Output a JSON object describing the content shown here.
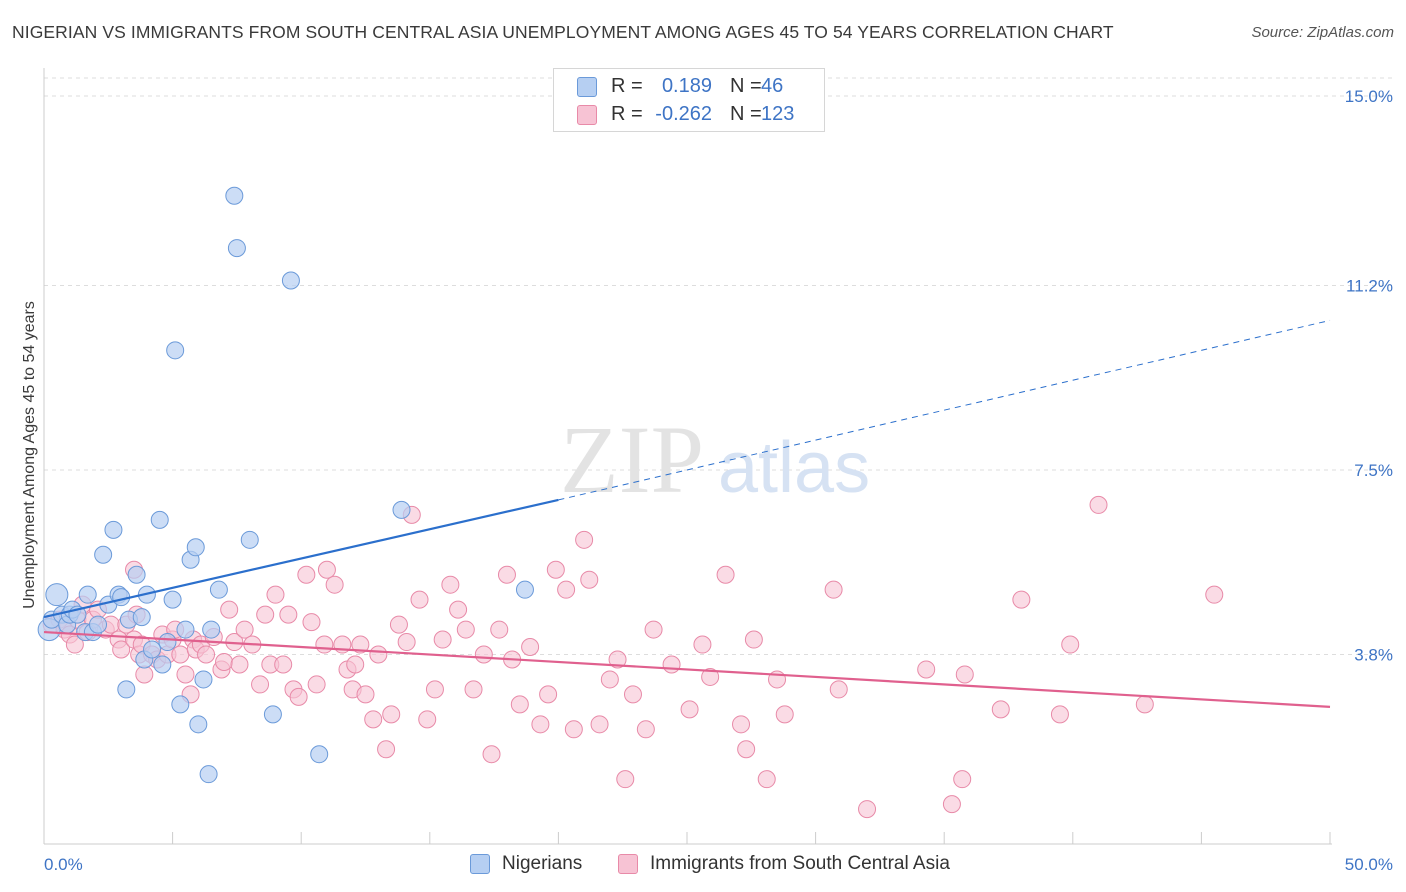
{
  "title": "NIGERIAN VS IMMIGRANTS FROM SOUTH CENTRAL ASIA UNEMPLOYMENT AMONG AGES 45 TO 54 YEARS CORRELATION CHART",
  "source": "Source: ZipAtlas.com",
  "watermark": {
    "zip": "ZIP",
    "atlas": "atlas"
  },
  "legend_top": [
    {
      "r_label": "R =",
      "r_value": "0.189",
      "n_label": "N =",
      "n_value": "46"
    },
    {
      "r_label": "R =",
      "r_value": "-0.262",
      "n_label": "N =",
      "n_value": "123"
    }
  ],
  "legend_bottom": [
    "Nigerians",
    "Immigrants from South Central Asia"
  ],
  "colors": {
    "blue_fill": "#b6cff2",
    "blue_stroke": "#6b9ad9",
    "blue_line": "#2b6fcc",
    "pink_fill": "#f7c3d4",
    "pink_stroke": "#e88aa8",
    "pink_line": "#e0608e",
    "tick_label": "#3e74c5",
    "grid": "#dddddd"
  },
  "chart_data": {
    "type": "scatter",
    "title": "NIGERIAN VS IMMIGRANTS FROM SOUTH CENTRAL ASIA UNEMPLOYMENT AMONG AGES 45 TO 54 YEARS CORRELATION CHART",
    "xlabel": "",
    "ylabel": "Unemployment Among Ages 45 to 54 years",
    "xlim": [
      0,
      50
    ],
    "ylim": [
      0,
      15.5
    ],
    "x_tick_labels": [
      "0.0%",
      "50.0%"
    ],
    "y_ticks": [
      {
        "value": 3.8,
        "label": "3.8%"
      },
      {
        "value": 7.5,
        "label": "7.5%"
      },
      {
        "value": 11.2,
        "label": "11.2%"
      },
      {
        "value": 15.0,
        "label": "15.0%"
      }
    ],
    "grid": "horizontal dashed",
    "series": [
      {
        "name": "Nigerians",
        "r": 0.189,
        "n": 46,
        "trend": {
          "x0": 0,
          "y0": 4.55,
          "x_solid_end": 20,
          "y_solid_end": 6.9,
          "x1": 50,
          "y1": 10.5
        },
        "points": [
          [
            0.2,
            4.3
          ],
          [
            0.3,
            4.5
          ],
          [
            0.5,
            5.0
          ],
          [
            0.7,
            4.6
          ],
          [
            0.9,
            4.4
          ],
          [
            1.0,
            4.6
          ],
          [
            1.1,
            4.7
          ],
          [
            1.3,
            4.6
          ],
          [
            1.6,
            4.25
          ],
          [
            1.7,
            5.0
          ],
          [
            1.9,
            4.25
          ],
          [
            2.1,
            4.4
          ],
          [
            2.3,
            5.8
          ],
          [
            2.5,
            4.8
          ],
          [
            2.7,
            6.3
          ],
          [
            2.9,
            5.0
          ],
          [
            3.0,
            4.95
          ],
          [
            3.2,
            3.1
          ],
          [
            3.3,
            4.5
          ],
          [
            3.6,
            5.4
          ],
          [
            3.8,
            4.55
          ],
          [
            3.9,
            3.7
          ],
          [
            4.0,
            5.0
          ],
          [
            4.2,
            3.9
          ],
          [
            4.5,
            6.5
          ],
          [
            4.6,
            3.6
          ],
          [
            4.8,
            4.05
          ],
          [
            5.0,
            4.9
          ],
          [
            5.1,
            9.9
          ],
          [
            5.3,
            2.8
          ],
          [
            5.5,
            4.3
          ],
          [
            5.7,
            5.7
          ],
          [
            5.9,
            5.95
          ],
          [
            6.0,
            2.4
          ],
          [
            6.2,
            3.3
          ],
          [
            6.4,
            1.4
          ],
          [
            6.5,
            4.3
          ],
          [
            6.8,
            5.1
          ],
          [
            7.4,
            13.0
          ],
          [
            7.5,
            11.95
          ],
          [
            8.0,
            6.1
          ],
          [
            8.9,
            2.6
          ],
          [
            9.6,
            11.3
          ],
          [
            10.7,
            1.8
          ],
          [
            13.9,
            6.7
          ],
          [
            18.7,
            5.1
          ]
        ]
      },
      {
        "name": "Immigrants from South Central Asia",
        "r": -0.262,
        "n": 123,
        "trend": {
          "x0": 0,
          "y0": 4.25,
          "x1": 50,
          "y1": 2.75
        },
        "points": [
          [
            0.3,
            4.4
          ],
          [
            0.6,
            4.5
          ],
          [
            0.8,
            4.3
          ],
          [
            1.0,
            4.2
          ],
          [
            1.2,
            4.0
          ],
          [
            1.3,
            4.5
          ],
          [
            1.5,
            4.8
          ],
          [
            1.7,
            4.25
          ],
          [
            1.9,
            4.5
          ],
          [
            2.1,
            4.7
          ],
          [
            2.4,
            4.3
          ],
          [
            2.6,
            4.4
          ],
          [
            2.9,
            4.1
          ],
          [
            3.0,
            3.9
          ],
          [
            3.2,
            4.4
          ],
          [
            3.5,
            4.1
          ],
          [
            3.5,
            5.5
          ],
          [
            3.6,
            4.6
          ],
          [
            3.7,
            3.8
          ],
          [
            3.8,
            4.0
          ],
          [
            3.9,
            3.4
          ],
          [
            4.2,
            3.8
          ],
          [
            4.4,
            3.7
          ],
          [
            4.6,
            4.2
          ],
          [
            4.8,
            3.8
          ],
          [
            5.0,
            4.1
          ],
          [
            5.1,
            4.3
          ],
          [
            5.3,
            3.8
          ],
          [
            5.5,
            3.4
          ],
          [
            5.7,
            3.0
          ],
          [
            5.8,
            4.1
          ],
          [
            5.9,
            3.9
          ],
          [
            6.1,
            4.0
          ],
          [
            6.3,
            3.8
          ],
          [
            6.6,
            4.15
          ],
          [
            6.9,
            3.5
          ],
          [
            7.0,
            3.65
          ],
          [
            7.2,
            4.7
          ],
          [
            7.4,
            4.05
          ],
          [
            7.6,
            3.6
          ],
          [
            7.8,
            4.3
          ],
          [
            8.1,
            4.0
          ],
          [
            8.4,
            3.2
          ],
          [
            8.6,
            4.6
          ],
          [
            8.8,
            3.6
          ],
          [
            9.0,
            5.0
          ],
          [
            9.3,
            3.6
          ],
          [
            9.5,
            4.6
          ],
          [
            9.7,
            3.1
          ],
          [
            9.9,
            2.95
          ],
          [
            10.2,
            5.4
          ],
          [
            10.4,
            4.45
          ],
          [
            10.6,
            3.2
          ],
          [
            10.9,
            4.0
          ],
          [
            11.0,
            5.5
          ],
          [
            11.3,
            5.2
          ],
          [
            11.6,
            4.0
          ],
          [
            11.8,
            3.5
          ],
          [
            12.0,
            3.1
          ],
          [
            12.1,
            3.6
          ],
          [
            12.3,
            4.0
          ],
          [
            12.5,
            3.0
          ],
          [
            12.8,
            2.5
          ],
          [
            13.0,
            3.8
          ],
          [
            13.3,
            1.9
          ],
          [
            13.5,
            2.6
          ],
          [
            13.8,
            4.4
          ],
          [
            14.1,
            4.05
          ],
          [
            14.3,
            6.6
          ],
          [
            14.6,
            4.9
          ],
          [
            14.9,
            2.5
          ],
          [
            15.2,
            3.1
          ],
          [
            15.5,
            4.1
          ],
          [
            15.8,
            5.2
          ],
          [
            16.1,
            4.7
          ],
          [
            16.4,
            4.3
          ],
          [
            16.7,
            3.1
          ],
          [
            17.1,
            3.8
          ],
          [
            17.4,
            1.8
          ],
          [
            17.7,
            4.3
          ],
          [
            18.0,
            5.4
          ],
          [
            18.2,
            3.7
          ],
          [
            18.5,
            2.8
          ],
          [
            18.9,
            3.95
          ],
          [
            19.3,
            2.4
          ],
          [
            19.6,
            3.0
          ],
          [
            19.9,
            5.5
          ],
          [
            20.3,
            5.1
          ],
          [
            20.6,
            2.3
          ],
          [
            21.0,
            6.1
          ],
          [
            21.2,
            5.3
          ],
          [
            21.6,
            2.4
          ],
          [
            22.0,
            3.3
          ],
          [
            22.3,
            3.7
          ],
          [
            22.6,
            1.3
          ],
          [
            22.9,
            3.0
          ],
          [
            23.4,
            2.3
          ],
          [
            23.7,
            4.3
          ],
          [
            24.4,
            3.6
          ],
          [
            25.1,
            2.7
          ],
          [
            25.6,
            4.0
          ],
          [
            25.9,
            3.35
          ],
          [
            26.5,
            5.4
          ],
          [
            27.1,
            2.4
          ],
          [
            27.3,
            1.9
          ],
          [
            27.6,
            4.1
          ],
          [
            28.1,
            1.3
          ],
          [
            28.5,
            3.3
          ],
          [
            28.8,
            2.6
          ],
          [
            30.7,
            5.1
          ],
          [
            30.9,
            3.1
          ],
          [
            32.0,
            0.7
          ],
          [
            34.3,
            3.5
          ],
          [
            35.3,
            0.8
          ],
          [
            35.7,
            1.3
          ],
          [
            35.8,
            3.4
          ],
          [
            37.2,
            2.7
          ],
          [
            38.0,
            4.9
          ],
          [
            39.5,
            2.6
          ],
          [
            39.9,
            4.0
          ],
          [
            41.0,
            6.8
          ],
          [
            42.8,
            2.8
          ],
          [
            45.5,
            5.0
          ]
        ]
      }
    ]
  }
}
